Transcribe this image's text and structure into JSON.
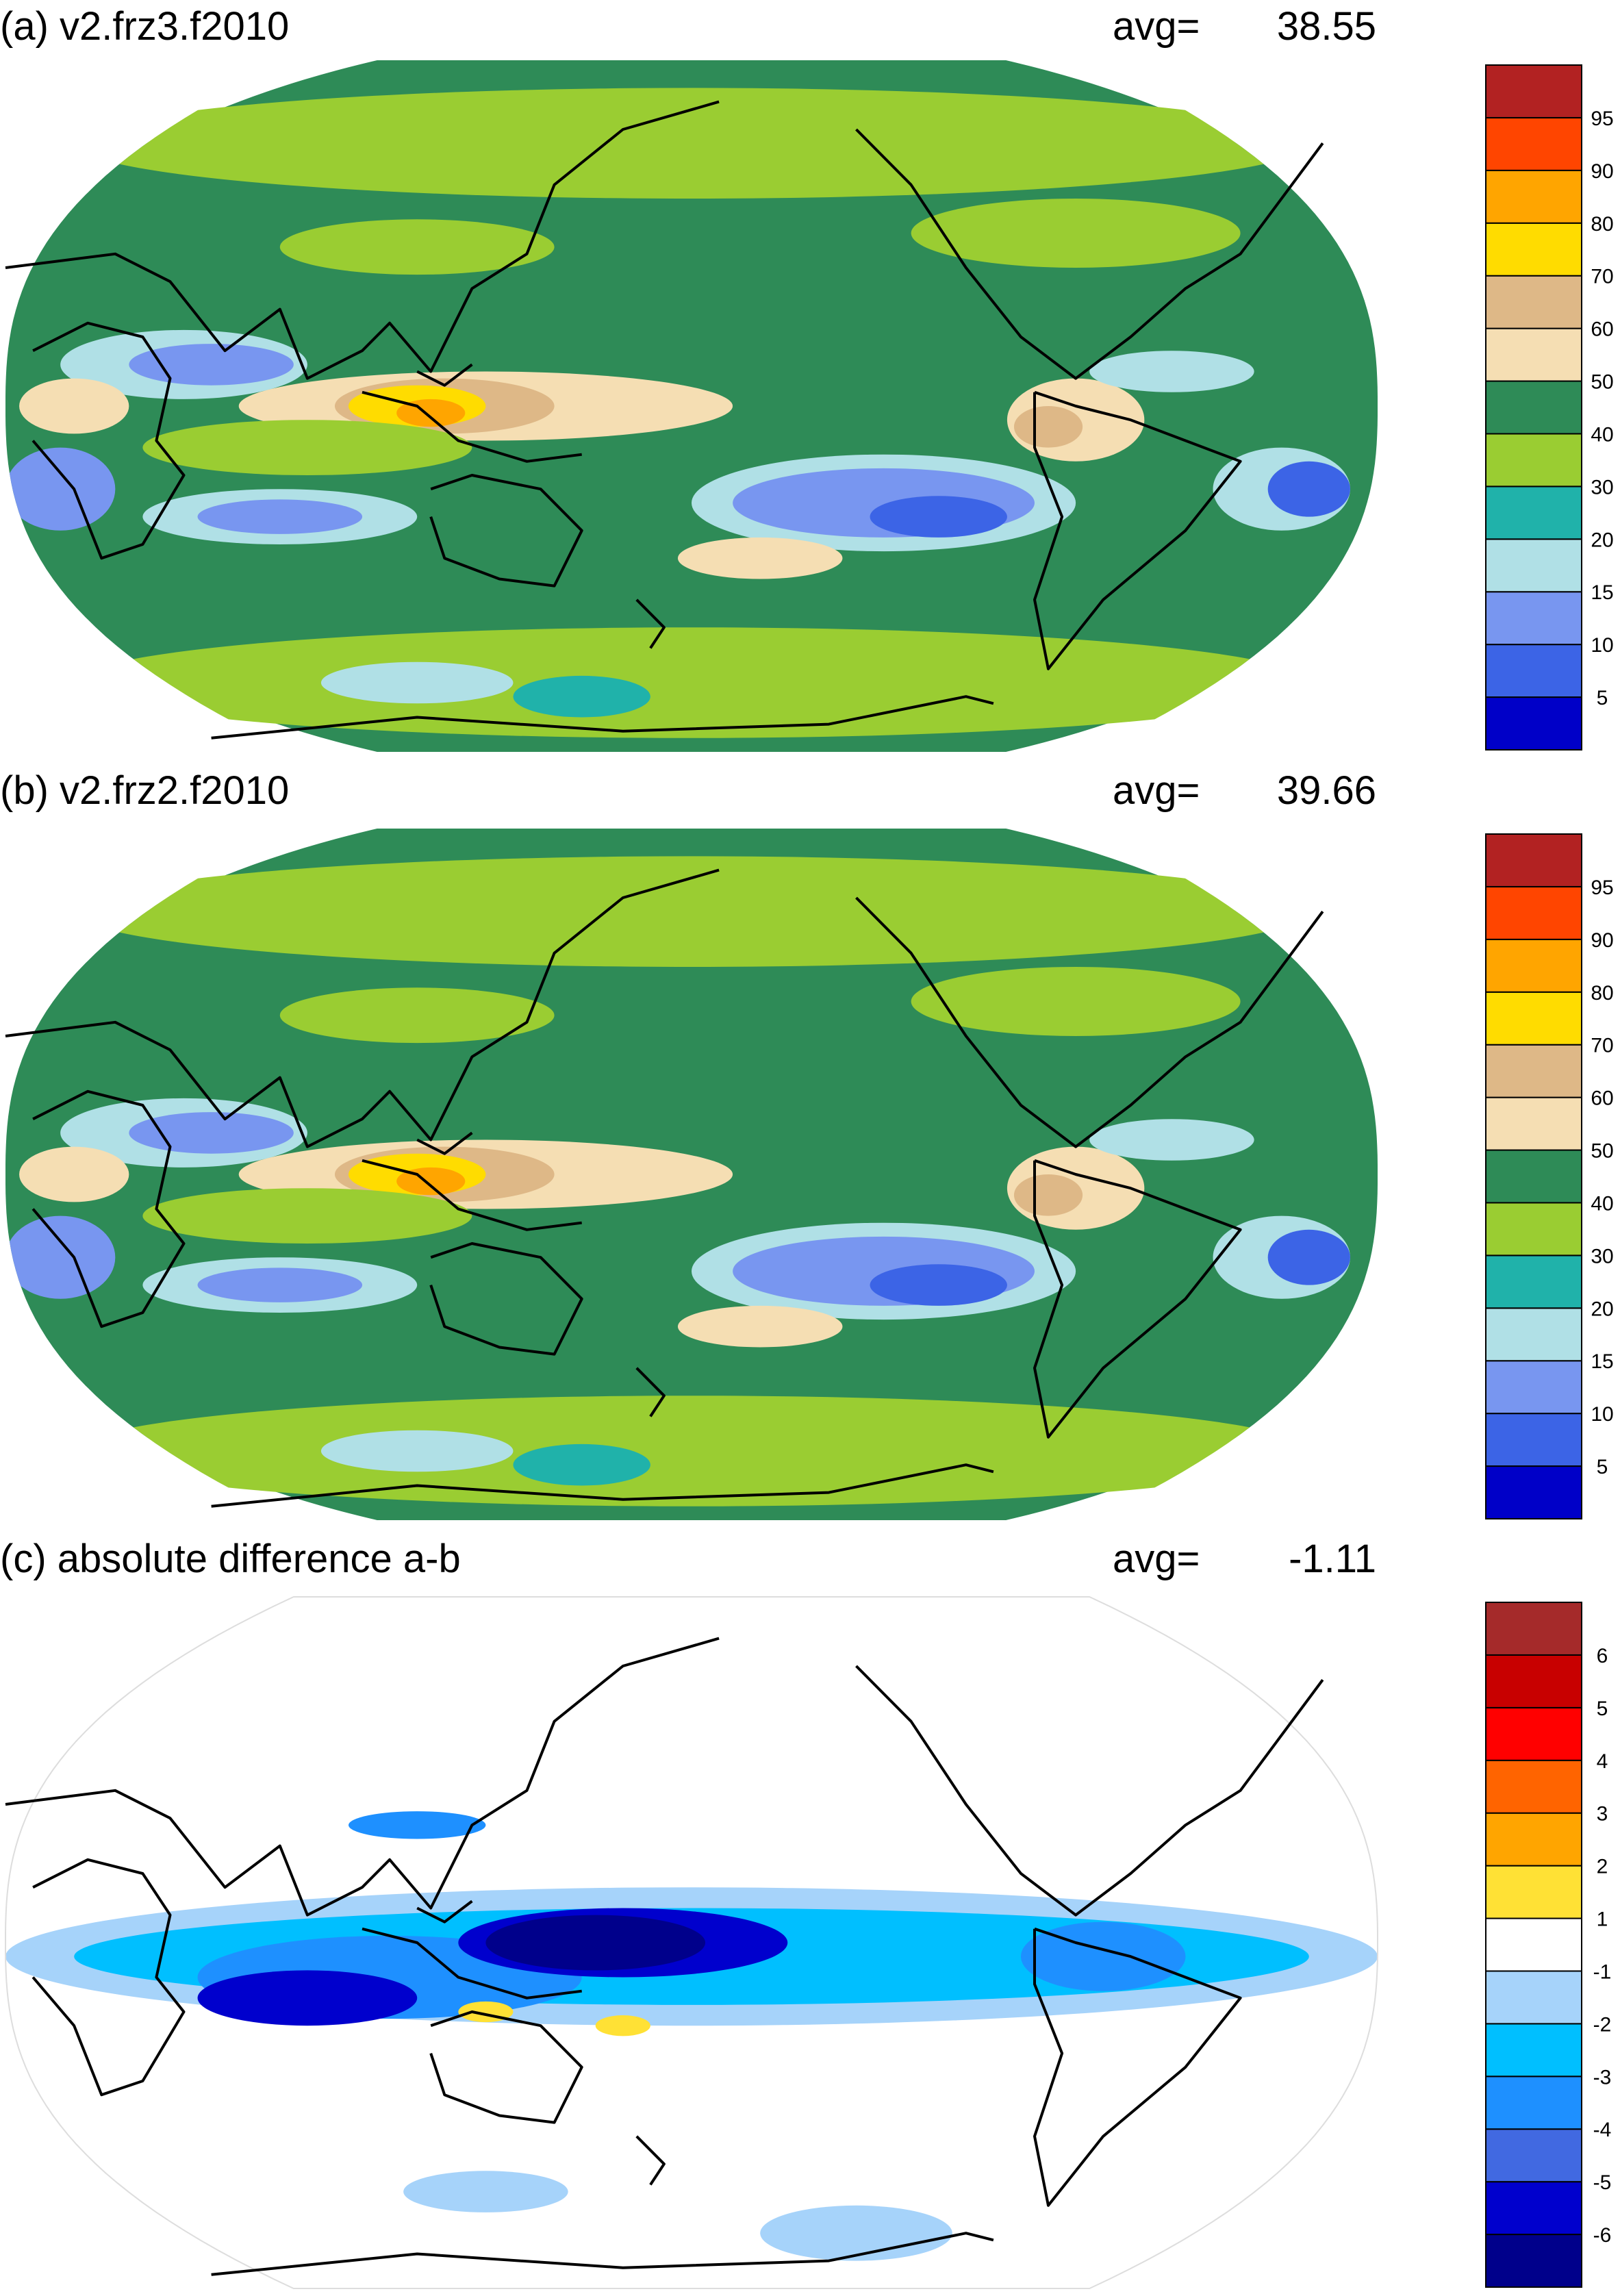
{
  "figure": {
    "panels": [
      {
        "title": "(a) v2.frz3.f2010",
        "avg_label": "avg=",
        "avg_value": "38.55",
        "scale": "abs"
      },
      {
        "title": "(b) v2.frz2.f2010",
        "avg_label": "avg=",
        "avg_value": "39.66",
        "scale": "abs"
      },
      {
        "title": "(c) absolute difference a-b",
        "avg_label": "avg=",
        "avg_value": "-1.11",
        "scale": "diff"
      }
    ],
    "colorbars": {
      "abs": {
        "labels": [
          "5",
          "10",
          "15",
          "20",
          "30",
          "40",
          "50",
          "60",
          "70",
          "80",
          "90",
          "95"
        ],
        "colors": [
          "#0000c8",
          "#3c64e6",
          "#7896f0",
          "#b0e0e6",
          "#20b2aa",
          "#9acd32",
          "#2e8b57",
          "#f5deb3",
          "#deb887",
          "#ffdc00",
          "#ffa500",
          "#ff4500",
          "#b22222"
        ]
      },
      "diff": {
        "labels": [
          "-6",
          "-5",
          "-4",
          "-3",
          "-2",
          "-1",
          "1",
          "2",
          "3",
          "4",
          "5",
          "6"
        ],
        "colors": [
          "#00008b",
          "#0000cd",
          "#4169e1",
          "#1e90ff",
          "#00bfff",
          "#a6d3fa",
          "#ffffff",
          "#ffe135",
          "#ffa500",
          "#ff6400",
          "#ff0000",
          "#c80000",
          "#a52a2a"
        ]
      }
    }
  },
  "chart_data": [
    {
      "type": "heatmap",
      "title": "(a) v2.frz3.f2010",
      "avg": 38.55,
      "projection": "Robinson, centered on the Pacific",
      "colorbar_levels": [
        5,
        10,
        15,
        20,
        30,
        40,
        50,
        60,
        70,
        80,
        90,
        95
      ],
      "features": [
        {
          "region": "Maritime Continent / Indonesia",
          "range": "70-90"
        },
        {
          "region": "Indian Ocean tropics",
          "range": "50-70"
        },
        {
          "region": "Southeast Pacific subtropics",
          "range": "10-20"
        },
        {
          "region": "Arabian Sea / North Indian Ocean",
          "range": "10-20"
        },
        {
          "region": "Mid-latitudes",
          "range": "30-50"
        }
      ]
    },
    {
      "type": "heatmap",
      "title": "(b) v2.frz2.f2010",
      "avg": 39.66,
      "projection": "Robinson, centered on the Pacific",
      "colorbar_levels": [
        5,
        10,
        15,
        20,
        30,
        40,
        50,
        60,
        70,
        80,
        90,
        95
      ],
      "features": [
        {
          "region": "Maritime Continent / Indonesia",
          "range": "70-90"
        },
        {
          "region": "Indian Ocean tropics",
          "range": "50-80"
        },
        {
          "region": "Southeast Pacific subtropics",
          "range": "10-20"
        },
        {
          "region": "Arabian Sea / North Indian Ocean",
          "range": "10-20"
        },
        {
          "region": "Mid-latitudes",
          "range": "30-50"
        }
      ]
    },
    {
      "type": "heatmap",
      "title": "(c) absolute difference a-b",
      "avg": -1.11,
      "projection": "Robinson, centered on the Pacific",
      "colorbar_levels": [
        -6,
        -5,
        -4,
        -3,
        -2,
        -1,
        1,
        2,
        3,
        4,
        5,
        6
      ],
      "features": [
        {
          "region": "Western tropical Pacific",
          "range": "-6 to -5"
        },
        {
          "region": "Tropical Indian Ocean",
          "range": "-5 to -3"
        },
        {
          "region": "Tropical belt",
          "range": "-3 to -1"
        },
        {
          "region": "Extratropics",
          "range": "-1 to 1"
        },
        {
          "region": "Australia, scattered",
          "range": "1 to 2"
        }
      ]
    }
  ]
}
